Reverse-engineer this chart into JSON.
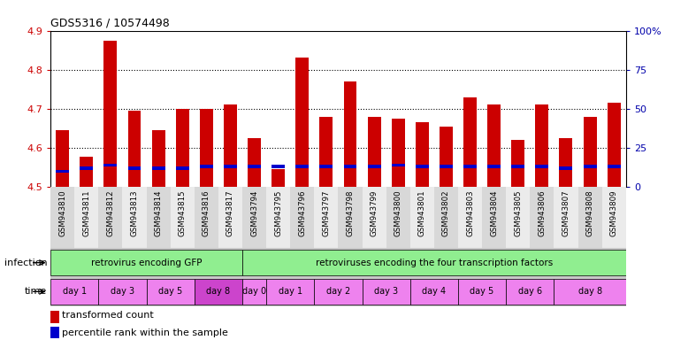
{
  "title": "GDS5316 / 10574498",
  "samples": [
    "GSM943810",
    "GSM943811",
    "GSM943812",
    "GSM943813",
    "GSM943814",
    "GSM943815",
    "GSM943816",
    "GSM943817",
    "GSM943794",
    "GSM943795",
    "GSM943796",
    "GSM943797",
    "GSM943798",
    "GSM943799",
    "GSM943800",
    "GSM943801",
    "GSM943802",
    "GSM943803",
    "GSM943804",
    "GSM943805",
    "GSM943806",
    "GSM943807",
    "GSM943808",
    "GSM943809"
  ],
  "red_values": [
    4.645,
    4.578,
    4.875,
    4.695,
    4.645,
    4.7,
    4.7,
    4.71,
    4.625,
    4.545,
    4.83,
    4.68,
    4.77,
    4.68,
    4.675,
    4.665,
    4.655,
    4.73,
    4.71,
    4.62,
    4.71,
    4.625,
    4.68,
    4.715
  ],
  "blue_values": [
    10,
    12,
    14,
    12,
    12,
    12,
    13,
    13,
    13,
    13,
    13,
    13,
    13,
    13,
    14,
    13,
    13,
    13,
    13,
    13,
    13,
    12,
    13,
    13
  ],
  "ylim_left": [
    4.5,
    4.9
  ],
  "ylim_right": [
    0,
    100
  ],
  "yticks_left": [
    4.5,
    4.6,
    4.7,
    4.8,
    4.9
  ],
  "yticks_right": [
    0,
    25,
    50,
    75,
    100
  ],
  "ytick_labels_right": [
    "0",
    "25",
    "50",
    "75",
    "100%"
  ],
  "infection_groups": [
    {
      "label": "retrovirus encoding GFP",
      "start": 0,
      "end": 8,
      "color": "#90EE90"
    },
    {
      "label": "retroviruses encoding the four transcription factors",
      "start": 8,
      "end": 24,
      "color": "#90EE90"
    }
  ],
  "time_groups": [
    {
      "label": "day 1",
      "start": 0,
      "end": 2,
      "color": "#EE82EE"
    },
    {
      "label": "day 3",
      "start": 2,
      "end": 4,
      "color": "#EE82EE"
    },
    {
      "label": "day 5",
      "start": 4,
      "end": 6,
      "color": "#EE82EE"
    },
    {
      "label": "day 8",
      "start": 6,
      "end": 8,
      "color": "#CC44CC"
    },
    {
      "label": "day 0",
      "start": 8,
      "end": 9,
      "color": "#EE82EE"
    },
    {
      "label": "day 1",
      "start": 9,
      "end": 11,
      "color": "#EE82EE"
    },
    {
      "label": "day 2",
      "start": 11,
      "end": 13,
      "color": "#EE82EE"
    },
    {
      "label": "day 3",
      "start": 13,
      "end": 15,
      "color": "#EE82EE"
    },
    {
      "label": "day 4",
      "start": 15,
      "end": 17,
      "color": "#EE82EE"
    },
    {
      "label": "day 5",
      "start": 17,
      "end": 19,
      "color": "#EE82EE"
    },
    {
      "label": "day 6",
      "start": 19,
      "end": 21,
      "color": "#EE82EE"
    },
    {
      "label": "day 8",
      "start": 21,
      "end": 24,
      "color": "#EE82EE"
    }
  ],
  "bar_width": 0.55,
  "bar_color": "#CC0000",
  "blue_color": "#0000CC",
  "grid_color": "#000000",
  "bg_color": "#FFFFFF",
  "ylabel_left_color": "#CC0000",
  "ylabel_right_color": "#0000AA",
  "infection_row_label": "infection",
  "time_row_label": "time",
  "legend_red": "transformed count",
  "legend_blue": "percentile rank within the sample",
  "tick_bg_colors": [
    "#D8D8D8",
    "#EBEBEB"
  ],
  "row_sep_color": "#808080"
}
